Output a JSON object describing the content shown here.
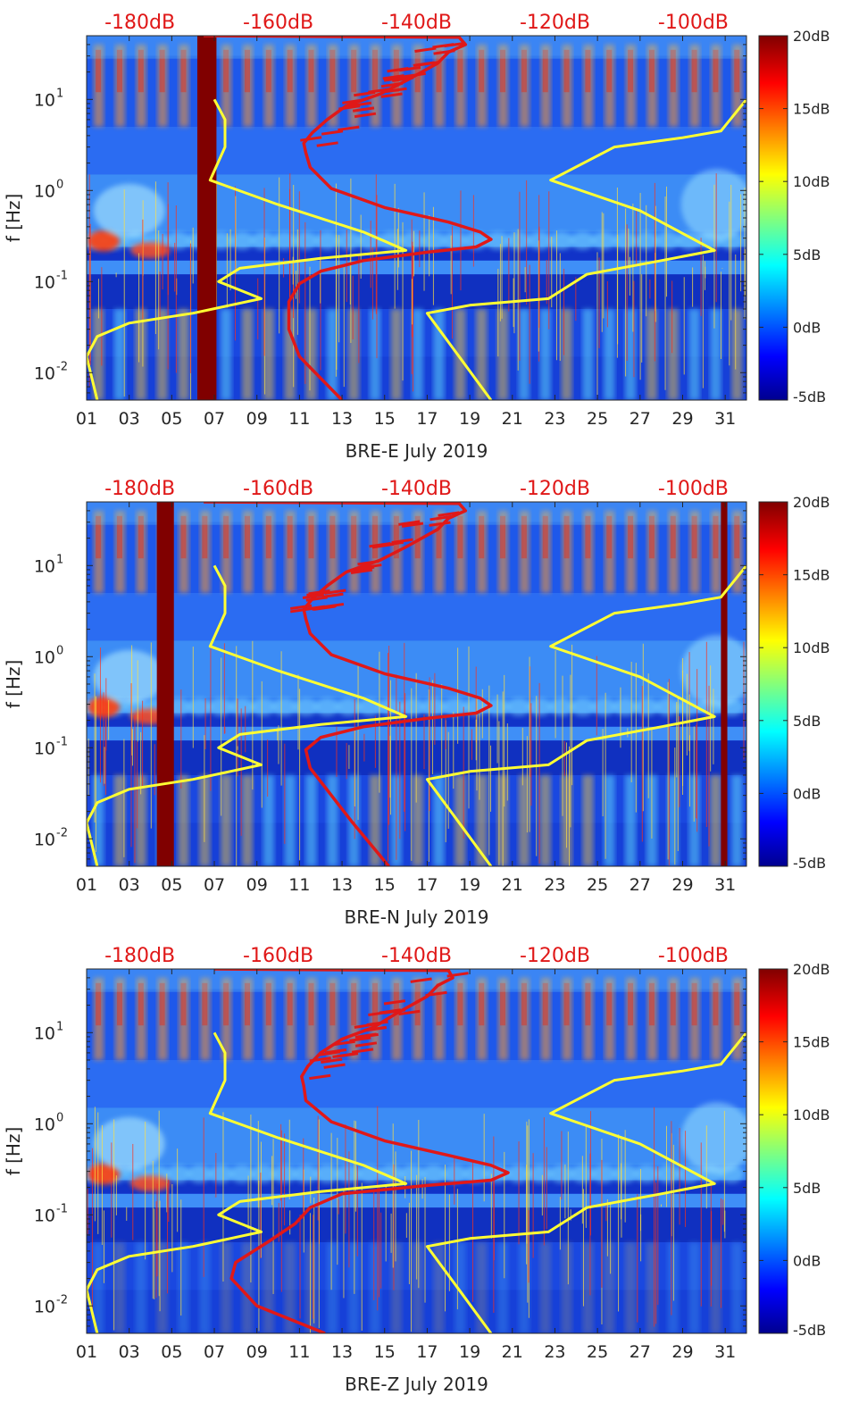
{
  "chart_data": [
    {
      "type": "heatmap",
      "xlabel": "BRE-E July 2019",
      "ylabel": "f [Hz]",
      "x_ticks": [
        "01",
        "03",
        "05",
        "07",
        "09",
        "11",
        "13",
        "15",
        "17",
        "19",
        "21",
        "23",
        "25",
        "27",
        "29",
        "31"
      ],
      "y_ticks": [
        {
          "label": "10",
          "exp": "-2",
          "value": 0.01
        },
        {
          "label": "10",
          "exp": "-1",
          "value": 0.1
        },
        {
          "label": "10",
          "exp": "0",
          "value": 1
        },
        {
          "label": "10",
          "exp": "1",
          "value": 10
        }
      ],
      "ylim": [
        0.005,
        50
      ],
      "xlim": [
        1,
        32
      ],
      "log_y": true,
      "top_ticks": [
        {
          "label": "-180dB",
          "day": 3.5
        },
        {
          "label": "-160dB",
          "day": 10
        },
        {
          "label": "-140dB",
          "day": 16.5
        },
        {
          "label": "-120dB",
          "day": 23
        },
        {
          "label": "-100dB",
          "day": 29.5
        }
      ],
      "colorbar": {
        "ticks": [
          "20dB",
          "15dB",
          "10dB",
          "5dB",
          "0dB",
          "-5dB"
        ],
        "range": [
          -5,
          20
        ]
      },
      "gap_bands": [
        [
          6.2,
          7.1
        ]
      ],
      "series": [
        {
          "color": "#ffff33",
          "points": [
            [
              7.0,
              10
            ],
            [
              7.5,
              6
            ],
            [
              7.5,
              3
            ],
            [
              6.8,
              1.3
            ],
            [
              10,
              0.7
            ],
            [
              14,
              0.35
            ],
            [
              16.0,
              0.22
            ],
            [
              12,
              0.18
            ],
            [
              8.2,
              0.14
            ],
            [
              7.2,
              0.1
            ],
            [
              9.2,
              0.065
            ],
            [
              6,
              0.045
            ],
            [
              3,
              0.035
            ],
            [
              1.5,
              0.025
            ],
            [
              1.0,
              0.015
            ],
            [
              1.5,
              0.005
            ]
          ]
        },
        {
          "color": "#ffff33",
          "points": [
            [
              32,
              10
            ],
            [
              30.8,
              4.5
            ],
            [
              29,
              3.8
            ],
            [
              25.8,
              3
            ],
            [
              22.8,
              1.3
            ],
            [
              27,
              0.6
            ],
            [
              30.5,
              0.22
            ],
            [
              28,
              0.17
            ],
            [
              24.5,
              0.12
            ],
            [
              22.7,
              0.065
            ],
            [
              19,
              0.055
            ],
            [
              17,
              0.045
            ],
            [
              18.5,
              0.015
            ],
            [
              20.0,
              0.005
            ]
          ]
        },
        {
          "color": "#e01818",
          "points": [
            [
              6.5,
              50
            ],
            [
              18.5,
              48
            ],
            [
              18.8,
              40
            ],
            [
              18.0,
              33
            ],
            [
              17.5,
              25
            ],
            [
              16.0,
              16
            ],
            [
              14.8,
              11.5
            ],
            [
              13.2,
              8.5
            ],
            [
              12.3,
              6
            ],
            [
              11.6,
              4.3
            ],
            [
              11.2,
              3.3
            ],
            [
              11.3,
              2.6
            ],
            [
              11.5,
              1.8
            ],
            [
              12.5,
              1.05
            ],
            [
              15,
              0.65
            ],
            [
              18,
              0.45
            ],
            [
              19.5,
              0.35
            ],
            [
              20.0,
              0.29
            ],
            [
              19.3,
              0.24
            ],
            [
              17,
              0.21
            ],
            [
              14,
              0.17
            ],
            [
              12,
              0.13
            ],
            [
              11.0,
              0.095
            ],
            [
              10.5,
              0.06
            ],
            [
              10.5,
              0.03
            ],
            [
              11,
              0.015
            ],
            [
              13,
              0.005
            ]
          ]
        }
      ]
    },
    {
      "type": "heatmap",
      "xlabel": "BRE-N July 2019",
      "ylabel": "f [Hz]",
      "x_ticks": [
        "01",
        "03",
        "05",
        "07",
        "09",
        "11",
        "13",
        "15",
        "17",
        "19",
        "21",
        "23",
        "25",
        "27",
        "29",
        "31"
      ],
      "y_ticks": [
        {
          "label": "10",
          "exp": "-2",
          "value": 0.01
        },
        {
          "label": "10",
          "exp": "-1",
          "value": 0.1
        },
        {
          "label": "10",
          "exp": "0",
          "value": 1
        },
        {
          "label": "10",
          "exp": "1",
          "value": 10
        }
      ],
      "ylim": [
        0.005,
        50
      ],
      "xlim": [
        1,
        32
      ],
      "log_y": true,
      "top_ticks": [
        {
          "label": "-180dB",
          "day": 3.5
        },
        {
          "label": "-160dB",
          "day": 10
        },
        {
          "label": "-140dB",
          "day": 16.5
        },
        {
          "label": "-120dB",
          "day": 23
        },
        {
          "label": "-100dB",
          "day": 29.5
        }
      ],
      "colorbar": {
        "ticks": [
          "20dB",
          "15dB",
          "10dB",
          "5dB",
          "0dB",
          "-5dB"
        ],
        "range": [
          -5,
          20
        ]
      },
      "gap_bands": [
        [
          4.3,
          5.1
        ],
        [
          30.8,
          31.1
        ]
      ],
      "series": [
        {
          "color": "#ffff33",
          "points": [
            [
              7.0,
              10
            ],
            [
              7.5,
              6
            ],
            [
              7.5,
              3
            ],
            [
              6.8,
              1.3
            ],
            [
              10,
              0.7
            ],
            [
              14,
              0.35
            ],
            [
              16.0,
              0.22
            ],
            [
              12,
              0.18
            ],
            [
              8.2,
              0.14
            ],
            [
              7.2,
              0.1
            ],
            [
              9.2,
              0.065
            ],
            [
              6,
              0.045
            ],
            [
              3,
              0.035
            ],
            [
              1.5,
              0.025
            ],
            [
              1.0,
              0.015
            ],
            [
              1.5,
              0.005
            ]
          ]
        },
        {
          "color": "#ffff33",
          "points": [
            [
              32,
              10
            ],
            [
              30.8,
              4.5
            ],
            [
              29,
              3.8
            ],
            [
              25.8,
              3
            ],
            [
              22.8,
              1.3
            ],
            [
              27,
              0.6
            ],
            [
              30.5,
              0.22
            ],
            [
              28,
              0.17
            ],
            [
              24.5,
              0.12
            ],
            [
              22.7,
              0.065
            ],
            [
              19,
              0.055
            ],
            [
              17,
              0.045
            ],
            [
              18.5,
              0.015
            ],
            [
              20.0,
              0.005
            ]
          ]
        },
        {
          "color": "#e01818",
          "points": [
            [
              6.5,
              50
            ],
            [
              18.5,
              48
            ],
            [
              18.8,
              40
            ],
            [
              18.0,
              33
            ],
            [
              17.5,
              25
            ],
            [
              16.0,
              16
            ],
            [
              14.8,
              11.5
            ],
            [
              13.2,
              8.5
            ],
            [
              12.3,
              6
            ],
            [
              11.6,
              4.3
            ],
            [
              11.2,
              3.3
            ],
            [
              11.3,
              2.6
            ],
            [
              11.5,
              1.8
            ],
            [
              12.5,
              1.05
            ],
            [
              15,
              0.65
            ],
            [
              18,
              0.45
            ],
            [
              19.5,
              0.35
            ],
            [
              20.0,
              0.29
            ],
            [
              19.3,
              0.24
            ],
            [
              17,
              0.21
            ],
            [
              14,
              0.17
            ],
            [
              12,
              0.13
            ],
            [
              11.3,
              0.095
            ],
            [
              11.5,
              0.06
            ],
            [
              12.5,
              0.03
            ],
            [
              13.5,
              0.015
            ],
            [
              15.2,
              0.005
            ]
          ]
        }
      ]
    },
    {
      "type": "heatmap",
      "xlabel": "BRE-Z July 2019",
      "ylabel": "f [Hz]",
      "x_ticks": [
        "01",
        "03",
        "05",
        "07",
        "09",
        "11",
        "13",
        "15",
        "17",
        "19",
        "21",
        "23",
        "25",
        "27",
        "29",
        "31"
      ],
      "y_ticks": [
        {
          "label": "10",
          "exp": "-2",
          "value": 0.01
        },
        {
          "label": "10",
          "exp": "-1",
          "value": 0.1
        },
        {
          "label": "10",
          "exp": "0",
          "value": 1
        },
        {
          "label": "10",
          "exp": "1",
          "value": 10
        }
      ],
      "ylim": [
        0.005,
        50
      ],
      "xlim": [
        1,
        32
      ],
      "log_y": true,
      "top_ticks": [
        {
          "label": "-180dB",
          "day": 3.5
        },
        {
          "label": "-160dB",
          "day": 10
        },
        {
          "label": "-140dB",
          "day": 16.5
        },
        {
          "label": "-120dB",
          "day": 23
        },
        {
          "label": "-100dB",
          "day": 29.5
        }
      ],
      "colorbar": {
        "ticks": [
          "20dB",
          "15dB",
          "10dB",
          "5dB",
          "0dB",
          "-5dB"
        ],
        "range": [
          -5,
          20
        ]
      },
      "gap_bands": [],
      "series": [
        {
          "color": "#ffff33",
          "points": [
            [
              7.0,
              10
            ],
            [
              7.5,
              6
            ],
            [
              7.5,
              3
            ],
            [
              6.8,
              1.3
            ],
            [
              10,
              0.7
            ],
            [
              14,
              0.35
            ],
            [
              16.0,
              0.22
            ],
            [
              12,
              0.18
            ],
            [
              8.2,
              0.14
            ],
            [
              7.2,
              0.1
            ],
            [
              9.2,
              0.065
            ],
            [
              6,
              0.045
            ],
            [
              3,
              0.035
            ],
            [
              1.5,
              0.025
            ],
            [
              1.0,
              0.015
            ],
            [
              1.5,
              0.005
            ]
          ]
        },
        {
          "color": "#ffff33",
          "points": [
            [
              32,
              10
            ],
            [
              30.8,
              4.5
            ],
            [
              29,
              3.8
            ],
            [
              25.8,
              3
            ],
            [
              22.8,
              1.3
            ],
            [
              27,
              0.6
            ],
            [
              30.5,
              0.22
            ],
            [
              28,
              0.17
            ],
            [
              24.5,
              0.12
            ],
            [
              22.7,
              0.065
            ],
            [
              19,
              0.055
            ],
            [
              17,
              0.045
            ],
            [
              18.5,
              0.015
            ],
            [
              20.0,
              0.005
            ]
          ]
        },
        {
          "color": "#e01818",
          "points": [
            [
              7.0,
              50
            ],
            [
              18.0,
              48
            ],
            [
              18.2,
              40
            ],
            [
              17.5,
              33
            ],
            [
              17.0,
              25
            ],
            [
              15.5,
              16
            ],
            [
              14.5,
              11.5
            ],
            [
              13.0,
              8.5
            ],
            [
              12.0,
              6
            ],
            [
              11.4,
              4.3
            ],
            [
              11.1,
              3.3
            ],
            [
              11.2,
              2.6
            ],
            [
              11.3,
              1.8
            ],
            [
              12.5,
              1.05
            ],
            [
              15,
              0.65
            ],
            [
              18,
              0.45
            ],
            [
              20,
              0.35
            ],
            [
              20.8,
              0.29
            ],
            [
              20.0,
              0.24
            ],
            [
              17,
              0.21
            ],
            [
              13,
              0.17
            ],
            [
              11.5,
              0.12
            ],
            [
              10.8,
              0.08
            ],
            [
              9.5,
              0.05
            ],
            [
              8.0,
              0.03
            ],
            [
              7.8,
              0.02
            ],
            [
              9,
              0.01
            ],
            [
              12.2,
              0.005
            ]
          ]
        }
      ]
    }
  ]
}
